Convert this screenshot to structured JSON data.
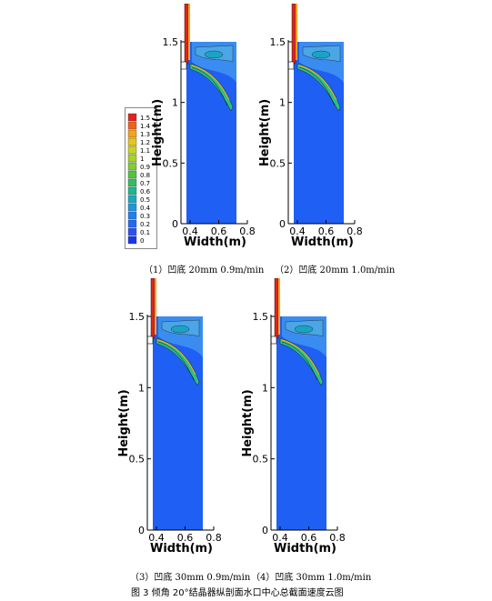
{
  "legend": {
    "levels": [
      "1.5",
      "1.4",
      "1.3",
      "1.2",
      "1.1",
      "1",
      "0.9",
      "0.8",
      "0.7",
      "0.6",
      "0.5",
      "0.4",
      "0.3",
      "0.2",
      "0.1",
      "0"
    ],
    "colors": [
      "#e0231c",
      "#f2611c",
      "#f7a21e",
      "#e8c51c",
      "#c8d41d",
      "#a6d425",
      "#7fcf2e",
      "#4ec63a",
      "#2fbd60",
      "#1cb693",
      "#19aac2",
      "#1c97dd",
      "#1f80ee",
      "#2468f5",
      "#2a50f2",
      "#1a36e6"
    ]
  },
  "panels": [
    {
      "caption": "（1）凹底 20mm 0.9m/min"
    },
    {
      "caption": "（2）凹底 20mm 1.0m/min"
    },
    {
      "caption": "（3）凹底 30mm 0.9m/min"
    },
    {
      "caption": "（4）凹底 30mm 1.0m/min"
    }
  ],
  "axes": {
    "ylabel": "Height(m)",
    "xlabel": "Width(m)",
    "yticks": [
      "0",
      "0.5",
      "1",
      "1.5"
    ],
    "xticks": [
      "0.4",
      "0.6",
      "0.8"
    ]
  },
  "figure_title": "图 3 倾角 20°结晶器纵剖面水口中心总截面速度云图"
}
